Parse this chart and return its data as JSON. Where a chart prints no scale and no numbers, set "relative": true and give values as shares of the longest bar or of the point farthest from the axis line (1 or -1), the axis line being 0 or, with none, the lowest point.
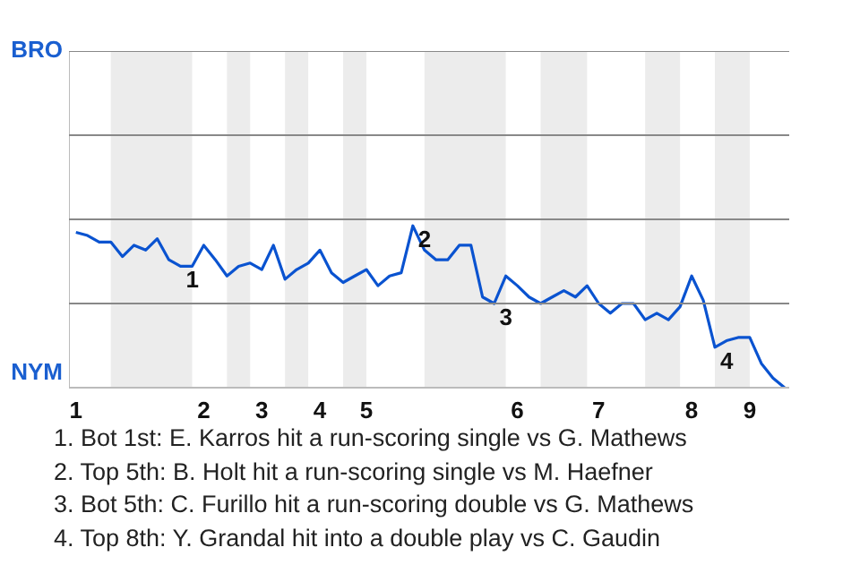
{
  "chart_data": {
    "type": "line",
    "relative": true,
    "marker": "none",
    "line_style": "solid",
    "categories": [
      "1",
      null,
      null,
      null,
      null,
      null,
      null,
      null,
      null,
      null,
      null,
      "2",
      null,
      null,
      null,
      null,
      "3",
      null,
      null,
      null,
      null,
      "4",
      null,
      null,
      null,
      "5",
      null,
      null,
      null,
      null,
      null,
      null,
      null,
      null,
      null,
      null,
      null,
      null,
      "6",
      null,
      null,
      null,
      null,
      null,
      null,
      "7",
      null,
      null,
      null,
      null,
      null,
      null,
      null,
      "8",
      null,
      null,
      null,
      null,
      "9",
      null,
      null,
      null
    ],
    "series": [
      {
        "color": "#0a53d0",
        "values": [
          0.96,
          0.94,
          0.9,
          0.9,
          0.81,
          0.88,
          0.85,
          0.92,
          0.79,
          0.75,
          0.75,
          0.88,
          0.79,
          0.69,
          0.75,
          0.77,
          0.73,
          0.88,
          0.67,
          0.73,
          0.77,
          0.85,
          0.71,
          0.65,
          0.69,
          0.73,
          0.63,
          0.69,
          0.71,
          1,
          0.85,
          0.79,
          0.79,
          0.88,
          0.88,
          0.56,
          0.52,
          0.69,
          0.63,
          0.56,
          0.52,
          0.56,
          0.6,
          0.56,
          0.63,
          0.52,
          0.46,
          0.52,
          0.52,
          0.42,
          0.46,
          0.42,
          0.5,
          0.69,
          0.54,
          0.25,
          0.29,
          0.31,
          0.31,
          0.15,
          0.06,
          0
        ]
      }
    ],
    "ref_lines": [
      {
        "axis": "y",
        "value": 0.52,
        "color": "#888888"
      },
      {
        "axis": "y",
        "value": 1.04,
        "color": "#888888"
      },
      {
        "axis": "y",
        "value": 1.56,
        "color": "#888888"
      },
      {
        "axis": "y",
        "value": 2.08,
        "color": "#888888"
      }
    ],
    "annotations": [
      "BRO",
      "NYM",
      {
        "text": "1",
        "y": 0.75
      },
      {
        "text": "2",
        "y": 1
      },
      {
        "text": "3",
        "y": 0.52
      },
      {
        "text": "4",
        "y": 0.25
      },
      "1. Bot 1st: E. Karros hit a run-scoring single vs G. Mathews",
      "2. Top 5th: B. Holt hit a run-scoring single vs M. Haefner",
      "3. Bot 5th: C. Furillo hit a run-scoring double vs G. Mathews",
      "4. Top 8th: Y. Grandal hit into a double play vs C. Gaudin"
    ]
  }
}
